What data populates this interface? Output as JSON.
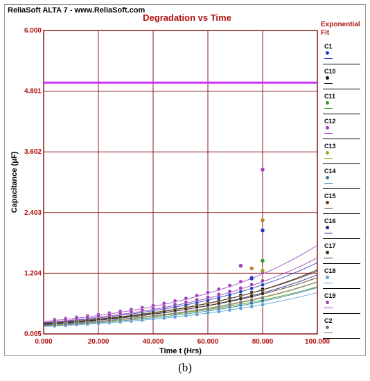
{
  "header": {
    "brand": "ReliaSoft ALTA 7 - www.ReliaSoft.com"
  },
  "caption": "(b)",
  "chart_data": {
    "type": "scatter",
    "title": "Degradation vs Time",
    "xlabel": "Time t (Hrs)",
    "ylabel": "Capacitance (μF)",
    "xlim": [
      0,
      100
    ],
    "ylim": [
      0.005,
      6.0
    ],
    "x_ticks": [
      "0.000",
      "20.000",
      "40.000",
      "60.000",
      "80.000",
      "100.000"
    ],
    "y_ticks": [
      "0.005",
      "1.204",
      "2.403",
      "3.602",
      "4.801",
      "6.000"
    ],
    "legend_title": "Exponential Fit",
    "legend_position": "right",
    "grid": true,
    "reference_line": {
      "y": 4.97,
      "color": "#cc33ff"
    },
    "x": [
      4,
      8,
      12,
      16,
      20,
      24,
      28,
      32,
      36,
      40,
      44,
      48,
      52,
      56,
      60,
      64,
      68,
      72,
      76,
      80
    ],
    "series": [
      {
        "name": "C1",
        "color": "#1f3fbf",
        "a": 0.22,
        "b": 0.0186,
        "offset": 0.0
      },
      {
        "name": "C10",
        "color": "#111111",
        "a": 0.2,
        "b": 0.0185,
        "offset": 0.01
      },
      {
        "name": "C11",
        "color": "#3a9a2a",
        "a": 0.18,
        "b": 0.0165,
        "offset": -0.01
      },
      {
        "name": "C12",
        "color": "#a040c0",
        "a": 0.25,
        "b": 0.0195,
        "offset": 0.02
      },
      {
        "name": "C13",
        "color": "#a0a020",
        "a": 0.17,
        "b": 0.018,
        "offset": 0.0
      },
      {
        "name": "C14",
        "color": "#2a7a9a",
        "a": 0.16,
        "b": 0.0175,
        "offset": 0.01
      },
      {
        "name": "C15",
        "color": "#6a3a1a",
        "a": 0.21,
        "b": 0.0178,
        "offset": -0.02
      },
      {
        "name": "C16",
        "color": "#1a1a8a",
        "a": 0.19,
        "b": 0.0182,
        "offset": 0.0
      },
      {
        "name": "C17",
        "color": "#3a2a0a",
        "a": 0.2,
        "b": 0.0172,
        "offset": 0.01
      },
      {
        "name": "C18",
        "color": "#5aa0d0",
        "a": 0.15,
        "b": 0.017,
        "offset": 0.0
      },
      {
        "name": "C19",
        "color": "#9a40b0",
        "a": 0.23,
        "b": 0.0188,
        "offset": 0.02
      },
      {
        "name": "C2",
        "color": "#707070",
        "a": 0.18,
        "b": 0.0175,
        "offset": -0.01
      }
    ],
    "outliers": [
      {
        "x": 80,
        "y": 3.25,
        "color": "#a040c0"
      },
      {
        "x": 80,
        "y": 2.25,
        "color": "#c08020"
      },
      {
        "x": 80,
        "y": 2.05,
        "color": "#1f3fbf"
      },
      {
        "x": 80,
        "y": 1.45,
        "color": "#3a9a2a"
      },
      {
        "x": 72,
        "y": 1.35,
        "color": "#a040c0"
      },
      {
        "x": 76,
        "y": 1.3,
        "color": "#c08020"
      },
      {
        "x": 80,
        "y": 1.25,
        "color": "#a0a020"
      },
      {
        "x": 76,
        "y": 1.1,
        "color": "#1f3fbf"
      }
    ]
  }
}
